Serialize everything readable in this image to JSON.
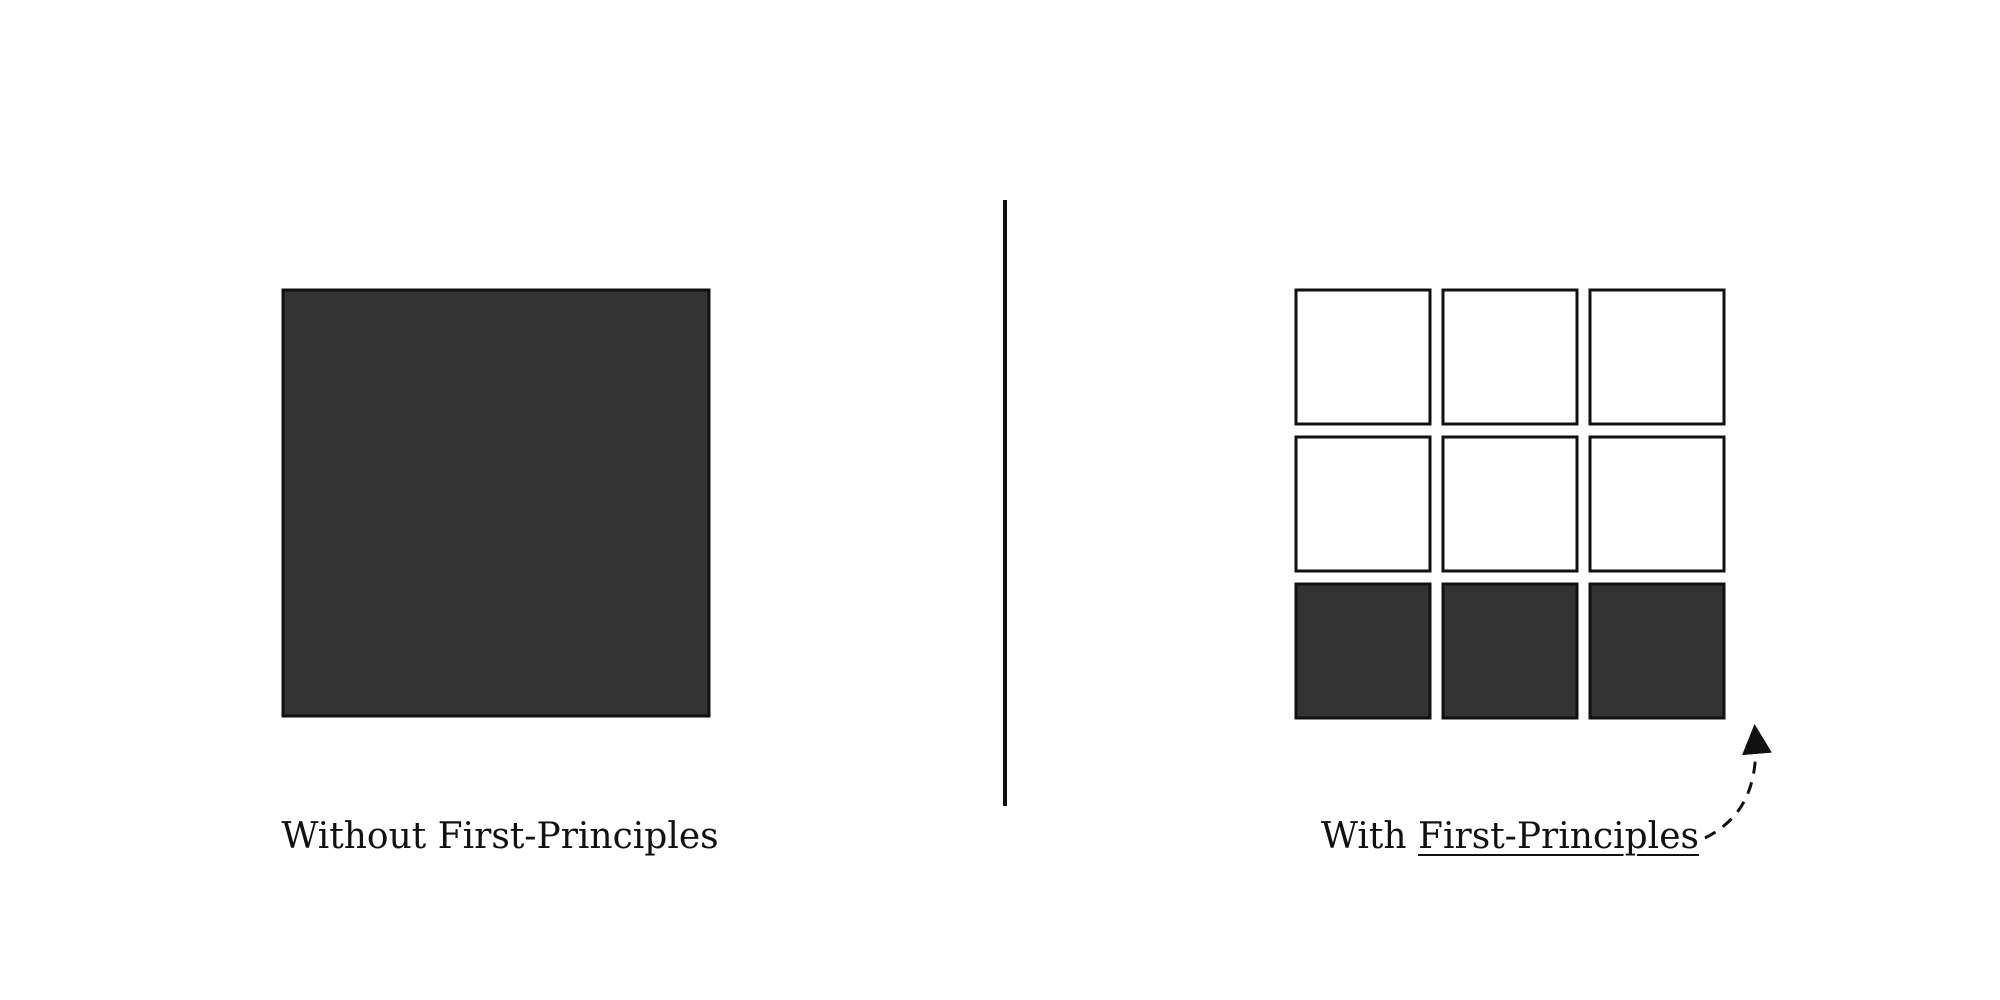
{
  "left_panel": {
    "caption": "Without First-Principles",
    "block": {
      "fill": "#333333"
    }
  },
  "right_panel": {
    "caption_prefix": "With",
    "caption_emphasis": "First-Principles",
    "grid": {
      "rows": 3,
      "cols": 3,
      "cells": [
        [
          "#ffffff",
          "#ffffff",
          "#ffffff"
        ],
        [
          "#ffffff",
          "#ffffff",
          "#ffffff"
        ],
        [
          "#333333",
          "#333333",
          "#333333"
        ]
      ]
    },
    "arrow": {
      "style": "dashed",
      "points_to": "bottom-row"
    }
  },
  "colors": {
    "stroke": "#111111",
    "dark_fill": "#333333",
    "light_fill": "#ffffff"
  }
}
